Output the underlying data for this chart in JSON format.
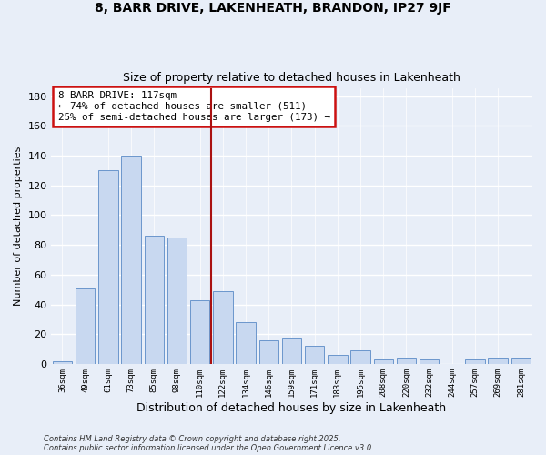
{
  "title": "8, BARR DRIVE, LAKENHEATH, BRANDON, IP27 9JF",
  "subtitle": "Size of property relative to detached houses in Lakenheath",
  "xlabel": "Distribution of detached houses by size in Lakenheath",
  "ylabel": "Number of detached properties",
  "categories": [
    "36sqm",
    "49sqm",
    "61sqm",
    "73sqm",
    "85sqm",
    "98sqm",
    "110sqm",
    "122sqm",
    "134sqm",
    "146sqm",
    "159sqm",
    "171sqm",
    "183sqm",
    "195sqm",
    "208sqm",
    "220sqm",
    "232sqm",
    "244sqm",
    "257sqm",
    "269sqm",
    "281sqm"
  ],
  "values": [
    2,
    51,
    130,
    140,
    86,
    85,
    43,
    49,
    28,
    16,
    18,
    12,
    6,
    9,
    3,
    4,
    3,
    0,
    3,
    4,
    4
  ],
  "bar_color": "#c8d8f0",
  "bar_edge_color": "#6b96cc",
  "background_color": "#e8eef8",
  "grid_color": "#d0d8e8",
  "vline_color": "#aa1111",
  "vline_x_index": 6.5,
  "annotation_title": "8 BARR DRIVE: 117sqm",
  "annotation_line1": "← 74% of detached houses are smaller (511)",
  "annotation_line2": "25% of semi-detached houses are larger (173) →",
  "box_edge_color": "#cc1111",
  "ylim": [
    0,
    185
  ],
  "yticks": [
    0,
    20,
    40,
    60,
    80,
    100,
    120,
    140,
    160,
    180
  ],
  "footer1": "Contains HM Land Registry data © Crown copyright and database right 2025.",
  "footer2": "Contains public sector information licensed under the Open Government Licence v3.0."
}
